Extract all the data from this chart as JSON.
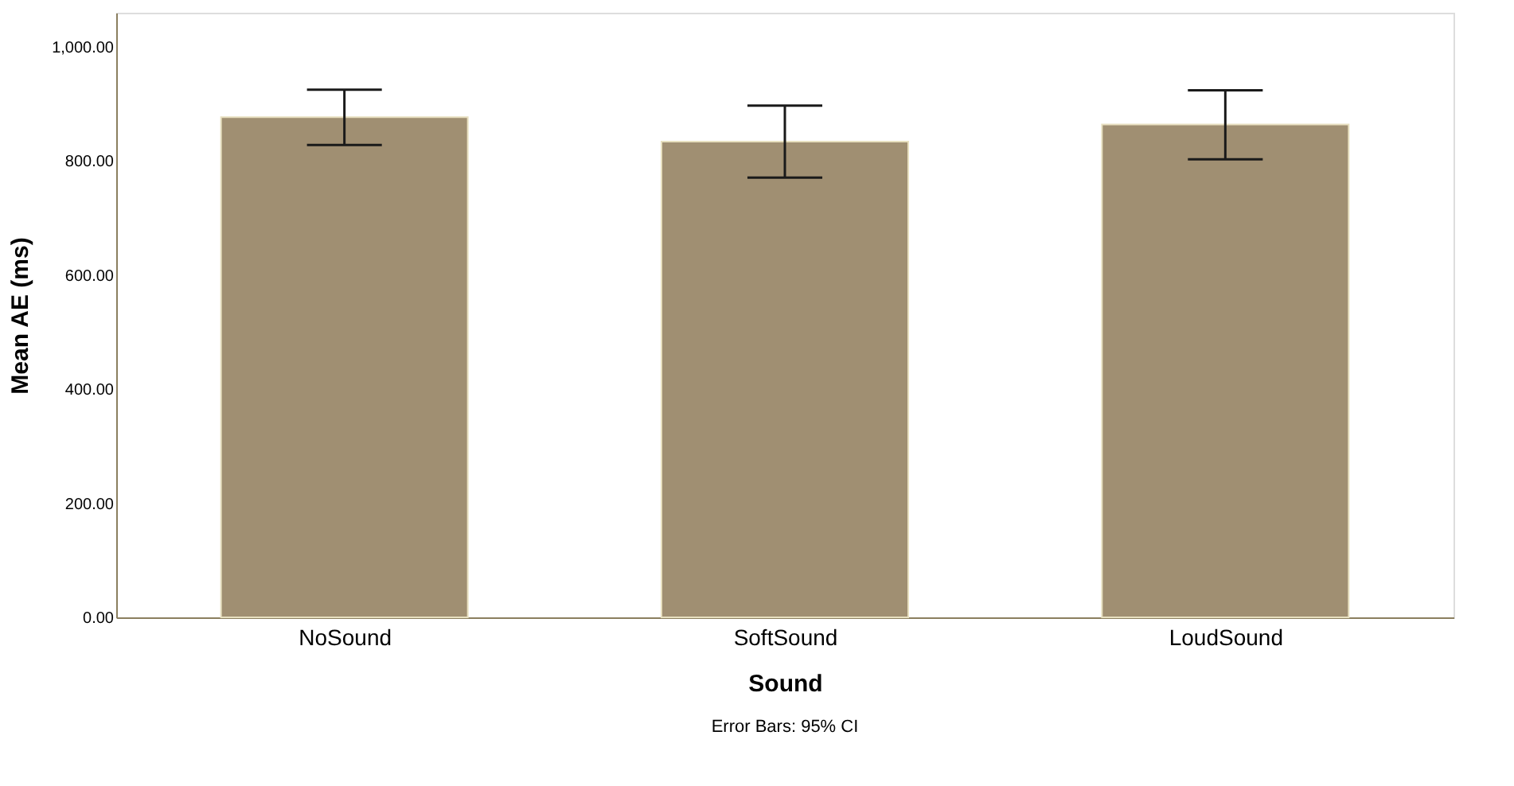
{
  "chart_data": {
    "type": "bar",
    "xlabel": "Sound",
    "ylabel": "Mean AE (ms)",
    "categories": [
      "NoSound",
      "SoftSound",
      "LoudSound"
    ],
    "values": [
      877,
      834,
      864
    ],
    "errors": [
      [
        828,
        925
      ],
      [
        771,
        897
      ],
      [
        803,
        924
      ]
    ],
    "color": "#a08f72",
    "ylim": [
      0,
      1060
    ],
    "yticks": [
      {
        "value": 0,
        "label": "0.00"
      },
      {
        "value": 200,
        "label": "200.00"
      },
      {
        "value": 400,
        "label": "400.00"
      },
      {
        "value": 600,
        "label": "600.00"
      },
      {
        "value": 800,
        "label": "800.00"
      },
      {
        "value": 1000,
        "label": "1,000.00"
      }
    ],
    "grid": false,
    "annotations": [
      "Error Bars: 95% CI"
    ]
  }
}
